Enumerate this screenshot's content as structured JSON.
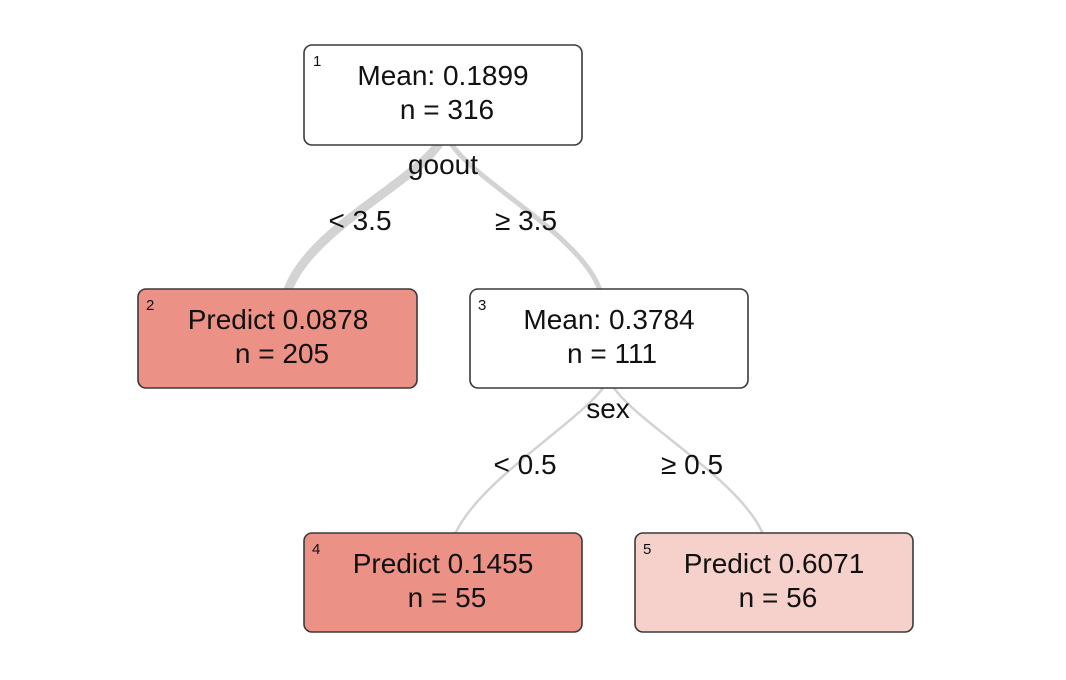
{
  "tree": {
    "nodes": [
      {
        "id": "1",
        "line1": "Mean: 0.1899",
        "line2": "n = 316",
        "fill": "#ffffff"
      },
      {
        "id": "2",
        "line1": "Predict 0.0878",
        "line2": "n = 205",
        "fill": "#eb9186"
      },
      {
        "id": "3",
        "line1": "Mean: 0.3784",
        "line2": "n = 111",
        "fill": "#ffffff"
      },
      {
        "id": "4",
        "line1": "Predict 0.1455",
        "line2": "n = 55",
        "fill": "#eb9186"
      },
      {
        "id": "5",
        "line1": "Predict 0.6071",
        "line2": "n = 56",
        "fill": "#f6d0ca"
      }
    ],
    "splits": [
      {
        "variable": "goout",
        "left_label": "< 3.5",
        "right_label": "≥ 3.5"
      },
      {
        "variable": "sex",
        "left_label": "< 0.5",
        "right_label": "≥ 0.5"
      }
    ],
    "edge_color": "#d3d3d3",
    "border_color": "#3a3a3a"
  }
}
